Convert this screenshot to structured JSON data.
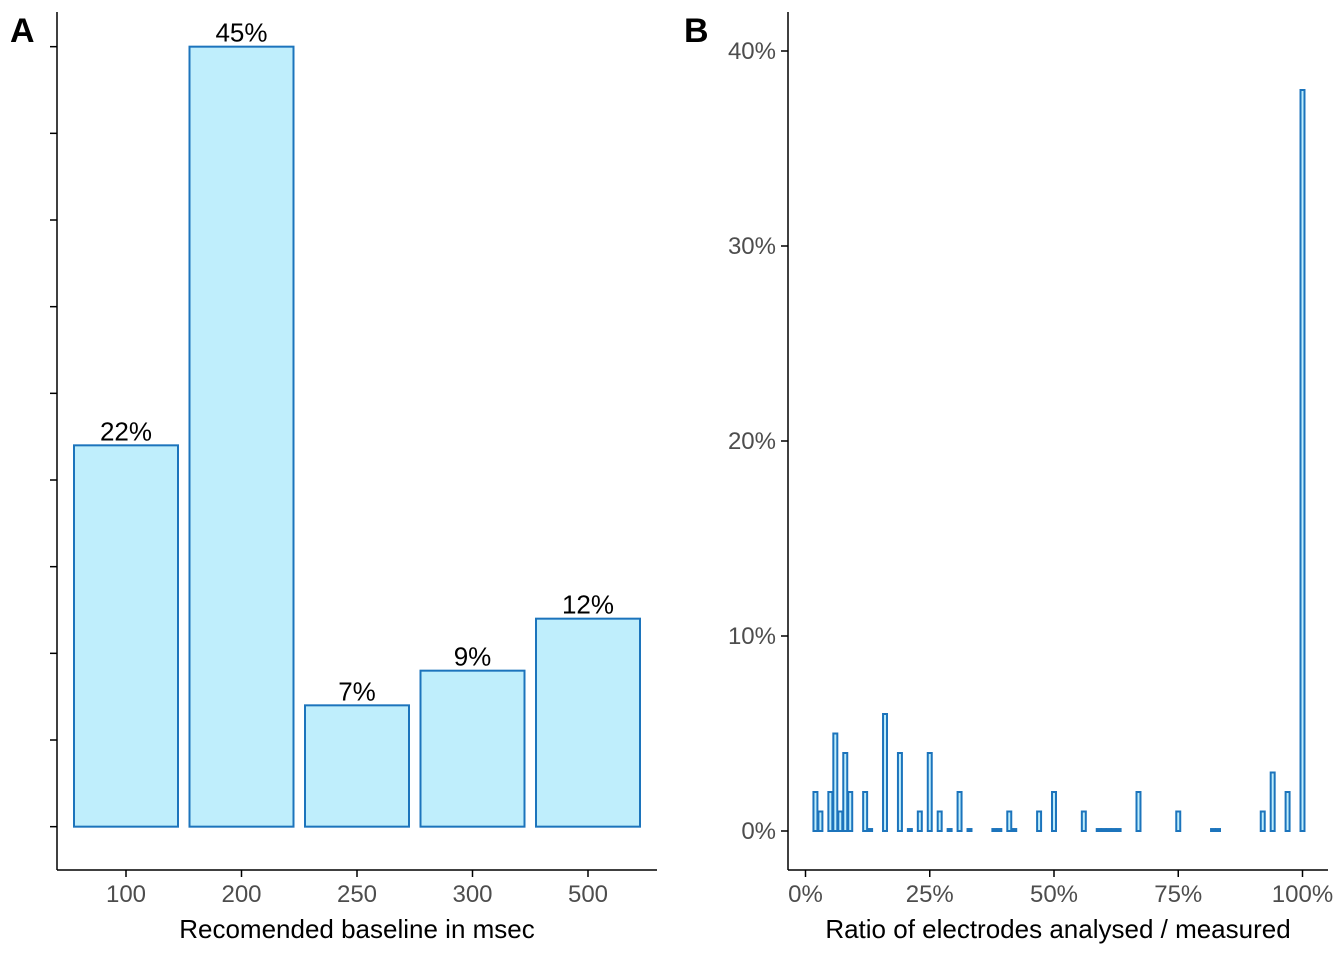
{
  "colors": {
    "bar_fill": "#bfeefc",
    "bar_stroke": "#1c74bc",
    "axis": "#000000",
    "tick_text": "#4d4d4d"
  },
  "chart_data": [
    {
      "panel": "A",
      "type": "bar",
      "title": "",
      "xlabel": "Recomended baseline in msec",
      "ylabel": "",
      "categories": [
        "100",
        "200",
        "250",
        "300",
        "500"
      ],
      "values": [
        22,
        45,
        7,
        9,
        12
      ],
      "value_labels": [
        "22%",
        "45%",
        "7%",
        "9%",
        "12%"
      ],
      "ylim": [
        -2.5,
        47
      ],
      "y_ticks_unlabeled": [
        0,
        5,
        10,
        15,
        20,
        25,
        30,
        35,
        40,
        45
      ],
      "grid": false,
      "legend": "none"
    },
    {
      "panel": "B",
      "type": "bar",
      "title": "",
      "xlabel": "Ratio of electrodes analysed / measured",
      "ylabel": "",
      "x_unit": "percent",
      "bin_width": 1,
      "x": [
        2,
        3,
        5,
        6,
        7,
        8,
        9,
        12,
        13,
        16,
        19,
        21,
        23,
        25,
        27,
        29,
        31,
        33,
        38,
        39,
        41,
        42,
        47,
        50,
        56,
        59,
        60,
        61,
        62,
        63,
        67,
        75,
        82,
        83,
        92,
        94,
        97,
        100
      ],
      "values": [
        2,
        1,
        2,
        5,
        1,
        4,
        2,
        2,
        0.1,
        6,
        4,
        0.1,
        1,
        4,
        1,
        0.1,
        2,
        0.1,
        0.1,
        0.1,
        1,
        0.1,
        1,
        2,
        1,
        0.1,
        0.1,
        0.1,
        0.1,
        0.1,
        2,
        1,
        0.1,
        0.1,
        1,
        3,
        2,
        38
      ],
      "xlim": [
        -3,
        104
      ],
      "ylim": [
        -2,
        42
      ],
      "x_ticks": [
        0,
        25,
        50,
        75,
        100
      ],
      "x_tick_labels": [
        "0%",
        "25%",
        "50%",
        "75%",
        "100%"
      ],
      "y_ticks": [
        0,
        10,
        20,
        30,
        40
      ],
      "y_tick_labels": [
        "0%",
        "10%",
        "20%",
        "30%",
        "40%"
      ],
      "grid": false,
      "legend": "none"
    }
  ]
}
